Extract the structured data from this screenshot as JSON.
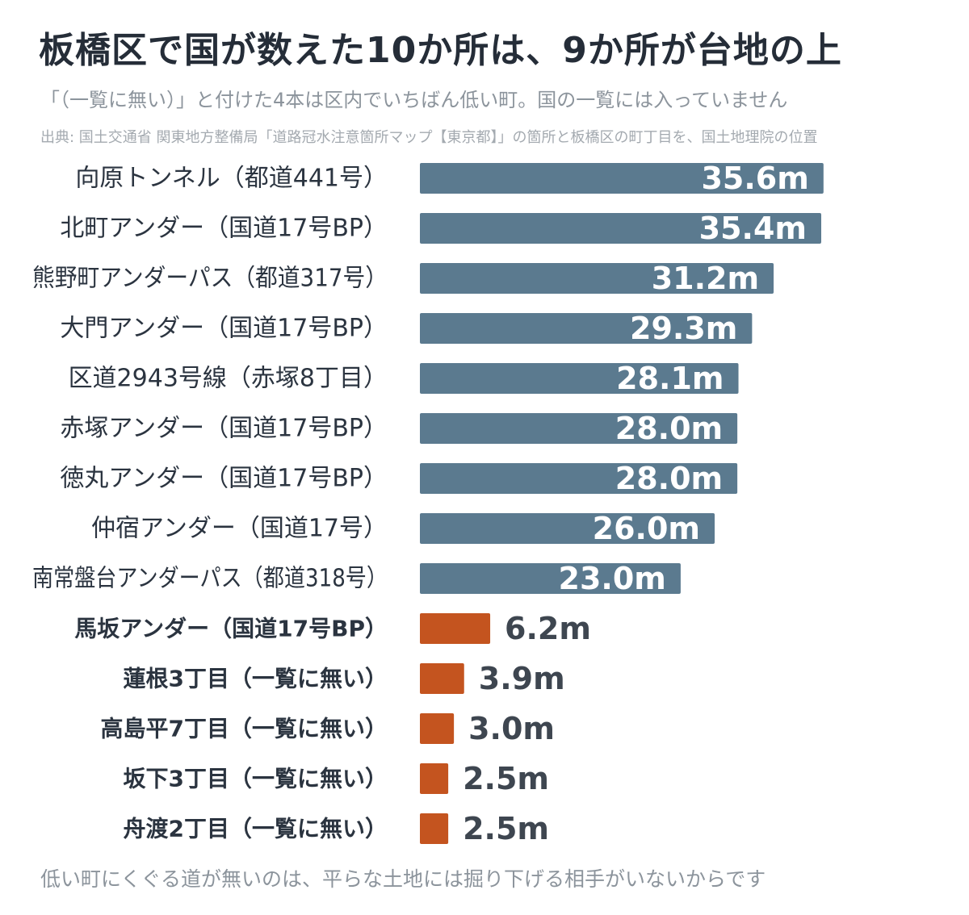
{
  "title": "板橋区で国が数えた10か所は、9か所が台地の上",
  "subtitle": "「（一覧に無い）」と付けた4本は区内でいちばん低い町。国の一覧には入っていません",
  "source": "出典: 国土交通省 関東地方整備局「道路冠水注意箇所マップ【東京都】」の箇所と板橋区の町丁目を、国土地理院の位置",
  "footnote": "低い町にくぐる道が無いのは、平らな土地には掘り下げる相手がいないからです",
  "colors": {
    "listed": "#5b7a8f",
    "unlisted": "#c4541f",
    "label": "#2b3440",
    "value_outside": "#3e4650",
    "value_inside": "#ffffff"
  },
  "chart_data": {
    "type": "bar",
    "orientation": "horizontal",
    "unit": "m",
    "xlim": [
      0,
      40
    ],
    "grid": false,
    "categories": [
      "向原トンネル（都道441号）",
      "北町アンダー（国道17号BP）",
      "熊野町アンダーパス（都道317号）",
      "大門アンダー（国道17号BP）",
      "区道2943号線（赤塚8丁目）",
      "赤塚アンダー（国道17号BP）",
      "徳丸アンダー（国道17号BP）",
      "仲宿アンダー（国道17号）",
      "南常盤台アンダーパス（都道318号）",
      "馬坂アンダー（国道17号BP）",
      "蓮根3丁目（一覧に無い）",
      "高島平7丁目（一覧に無い）",
      "坂下3丁目（一覧に無い）",
      "舟渡2丁目（一覧に無い）"
    ],
    "values": [
      35.6,
      35.4,
      31.2,
      29.3,
      28.1,
      28.0,
      28.0,
      26.0,
      23.0,
      6.2,
      3.9,
      3.0,
      2.5,
      2.5
    ],
    "value_labels": [
      "35.6m",
      "35.4m",
      "31.2m",
      "29.3m",
      "28.1m",
      "28.0m",
      "28.0m",
      "26.0m",
      "23.0m",
      "6.2m",
      "3.9m",
      "3.0m",
      "2.5m",
      "2.5m"
    ],
    "highlighted": [
      false,
      false,
      false,
      false,
      false,
      false,
      false,
      false,
      false,
      true,
      true,
      true,
      true,
      true
    ]
  }
}
